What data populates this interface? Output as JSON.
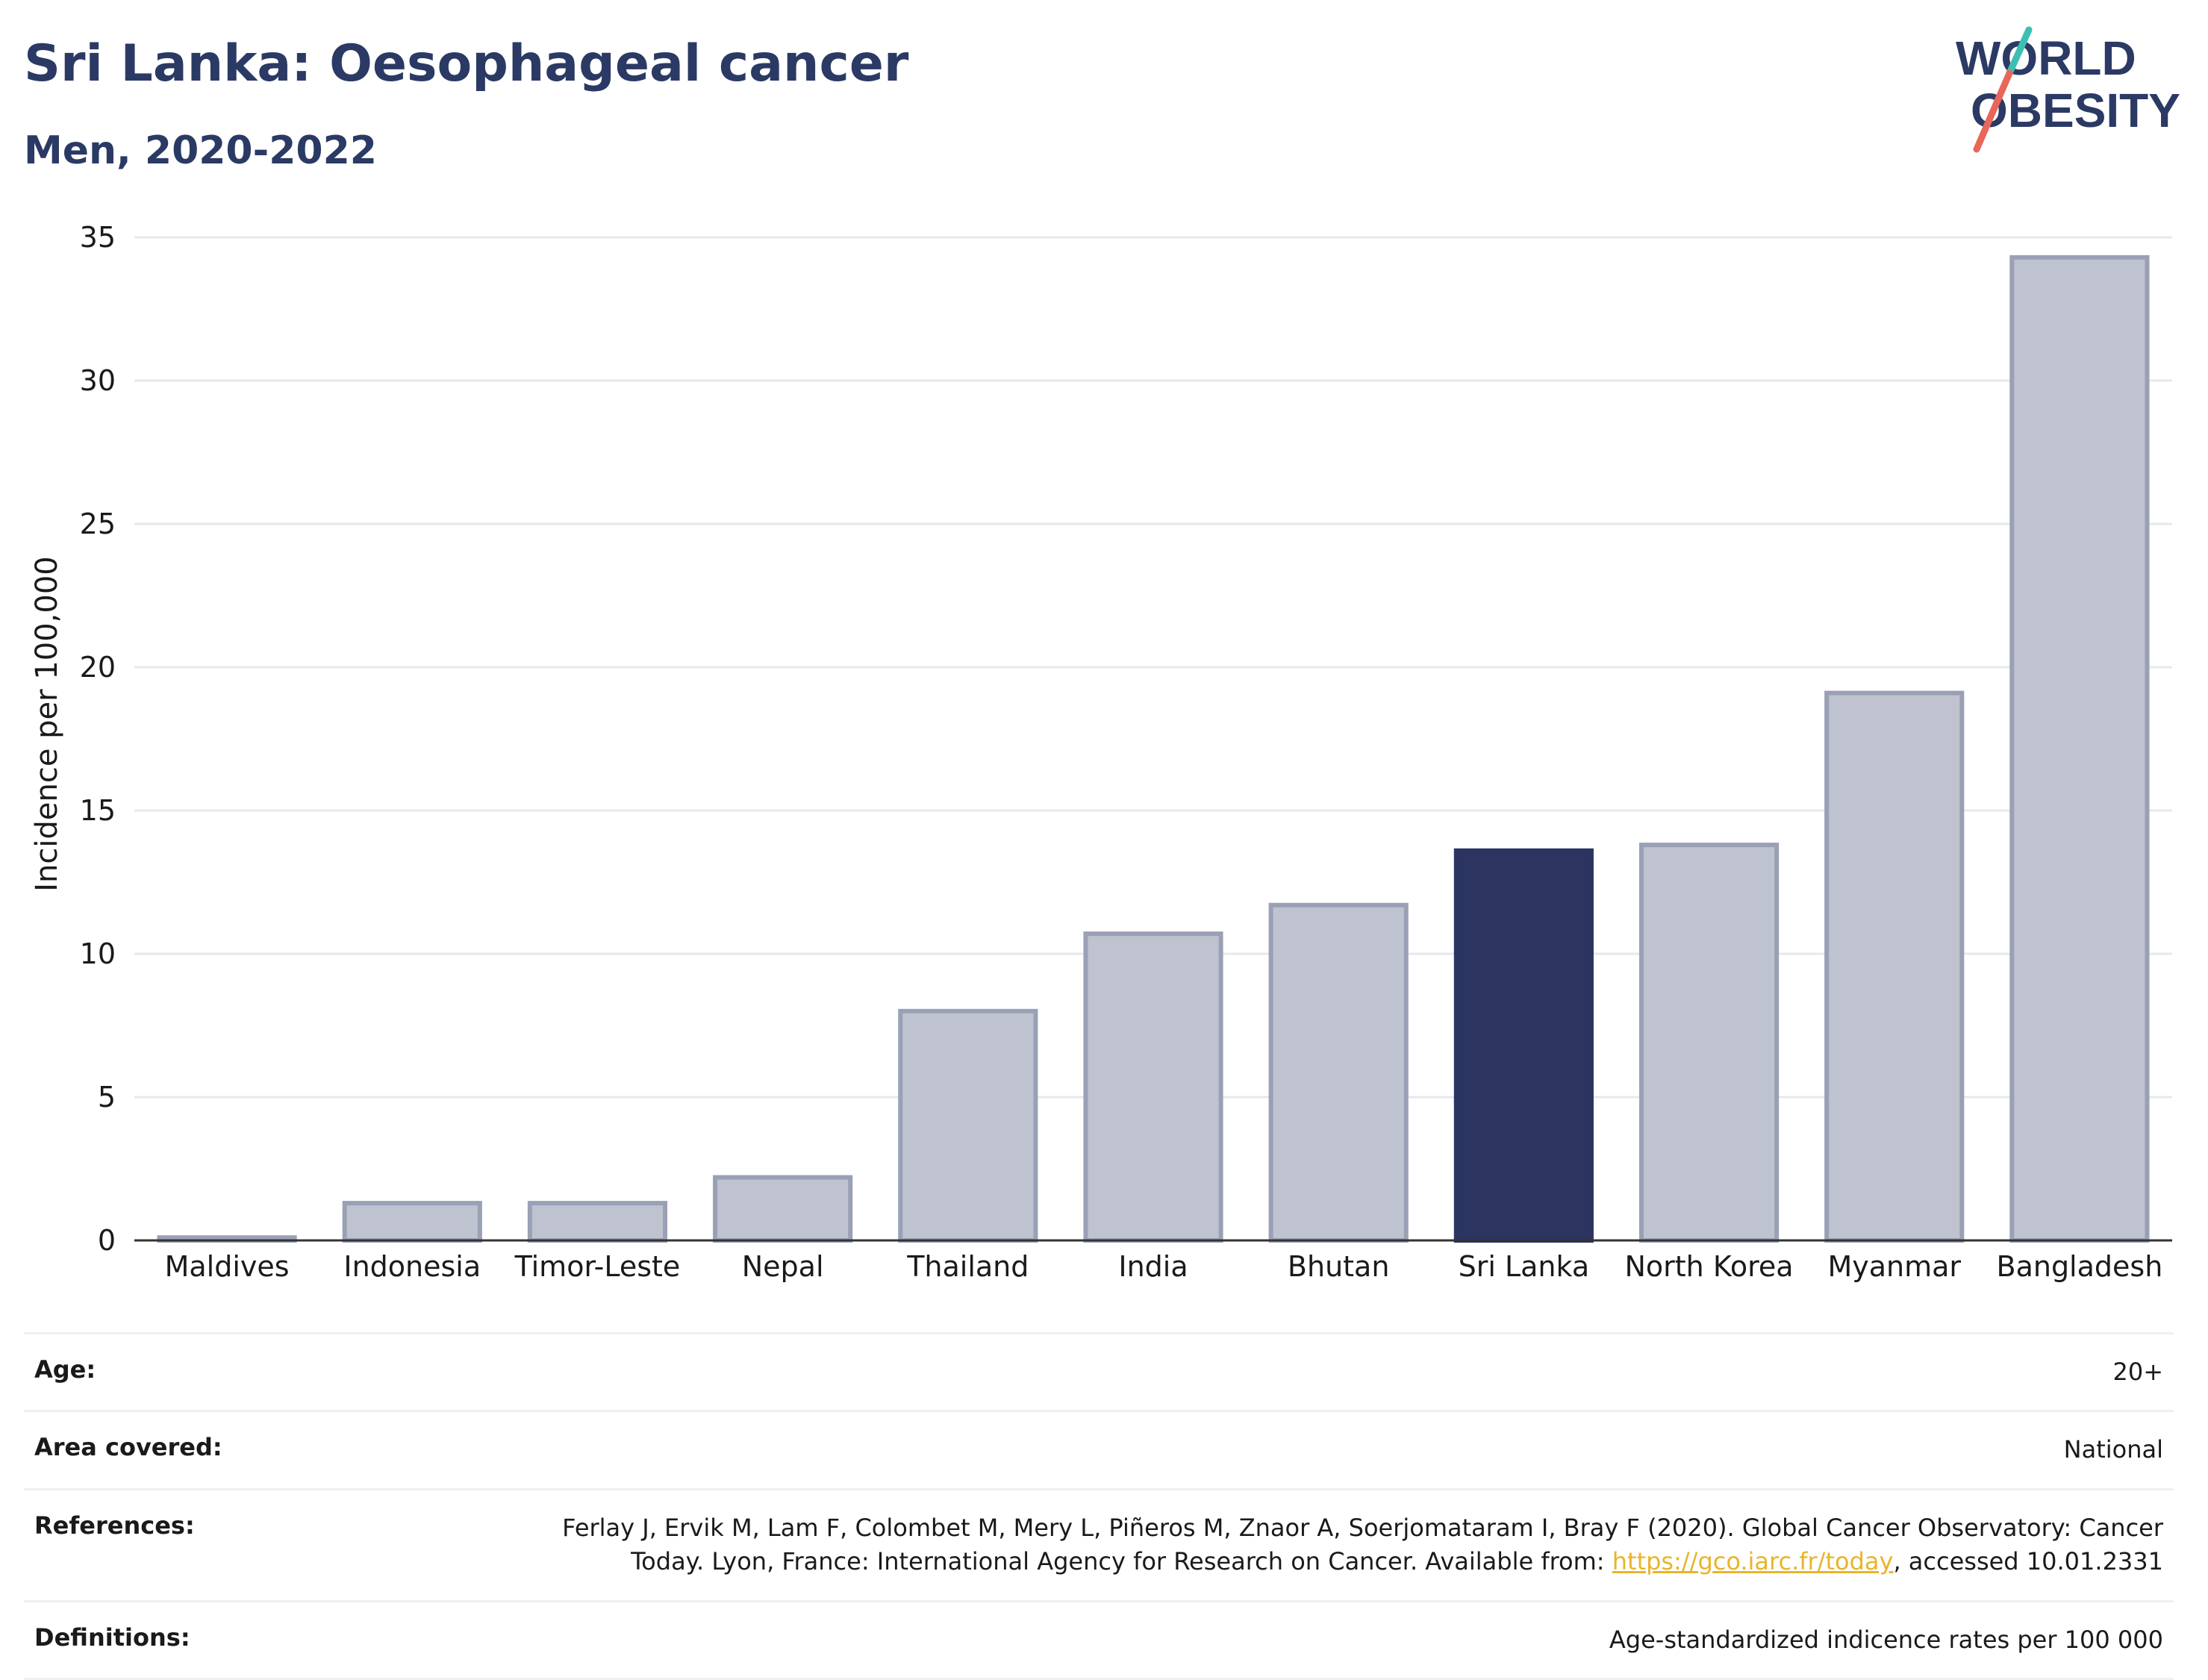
{
  "header": {
    "title": "Sri Lanka: Oesophageal cancer",
    "subtitle": "Men, 2020-2022"
  },
  "logo": {
    "line1": "WORLD",
    "line2": "OBESITY",
    "accent_colors": [
      "#3cbfb3",
      "#e8675a"
    ]
  },
  "chart_data": {
    "type": "bar",
    "categories": [
      "Maldives",
      "Indonesia",
      "Timor-Leste",
      "Nepal",
      "Thailand",
      "India",
      "Bhutan",
      "Sri Lanka",
      "North Korea",
      "Myanmar",
      "Bangladesh"
    ],
    "values": [
      0.1,
      1.3,
      1.3,
      2.2,
      8.0,
      10.7,
      11.7,
      13.6,
      13.8,
      19.1,
      34.3
    ],
    "highlight": "Sri Lanka",
    "ylabel": "Incidence per 100,000",
    "ylim": [
      0,
      35
    ],
    "yticks": [
      0,
      5,
      10,
      15,
      20,
      25,
      30,
      35
    ],
    "grid": true,
    "colors": {
      "bar": "#bfc3cf",
      "bar_outline": "#9aa0b5",
      "highlight": "#2b3560",
      "grid": "#e6e8ee",
      "axis": "#333333"
    }
  },
  "info": {
    "age_label": "Age:",
    "age_value": "20+",
    "area_label": "Area covered:",
    "area_value": "National",
    "references_label": "References:",
    "references_text1": "Ferlay J, Ervik M, Lam F, Colombet M, Mery L, Piñeros M, Znaor A, Soerjomataram I, Bray F (2020). Global Cancer Observatory: Cancer",
    "references_text2": "Today. Lyon, France: International Agency for Research on Cancer. Available from:",
    "references_link": "https://gco.iarc.fr/today",
    "references_text3": ", accessed 10.01.2331",
    "definitions_label": "Definitions:",
    "definitions_value": "Age-standardized indicence rates per 100 000"
  }
}
